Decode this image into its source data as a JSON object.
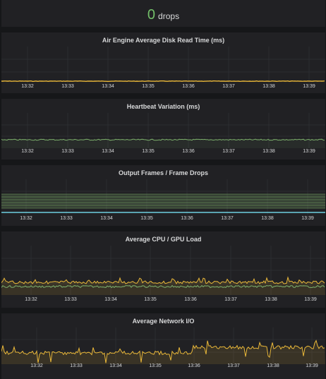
{
  "stat": {
    "value": "0",
    "unit": "drops",
    "value_color": "#73bf69"
  },
  "time_ticks": [
    "13:32",
    "13:33",
    "13:34",
    "13:35",
    "13:36",
    "13:37",
    "13:38",
    "13:39"
  ],
  "panels": [
    {
      "title": "Air Engine Average Disk Read Time (ms)"
    },
    {
      "title": "Heartbeat Variation (ms)"
    },
    {
      "title": "Output Frames / Frame Drops"
    },
    {
      "title": "Average CPU / GPU Load"
    },
    {
      "title": "Average Network I/O"
    }
  ],
  "colors": {
    "yellow": "#eab839",
    "green": "#7eb26d",
    "cyan": "#6ed0e0",
    "grid": "#2c2d31"
  }
}
